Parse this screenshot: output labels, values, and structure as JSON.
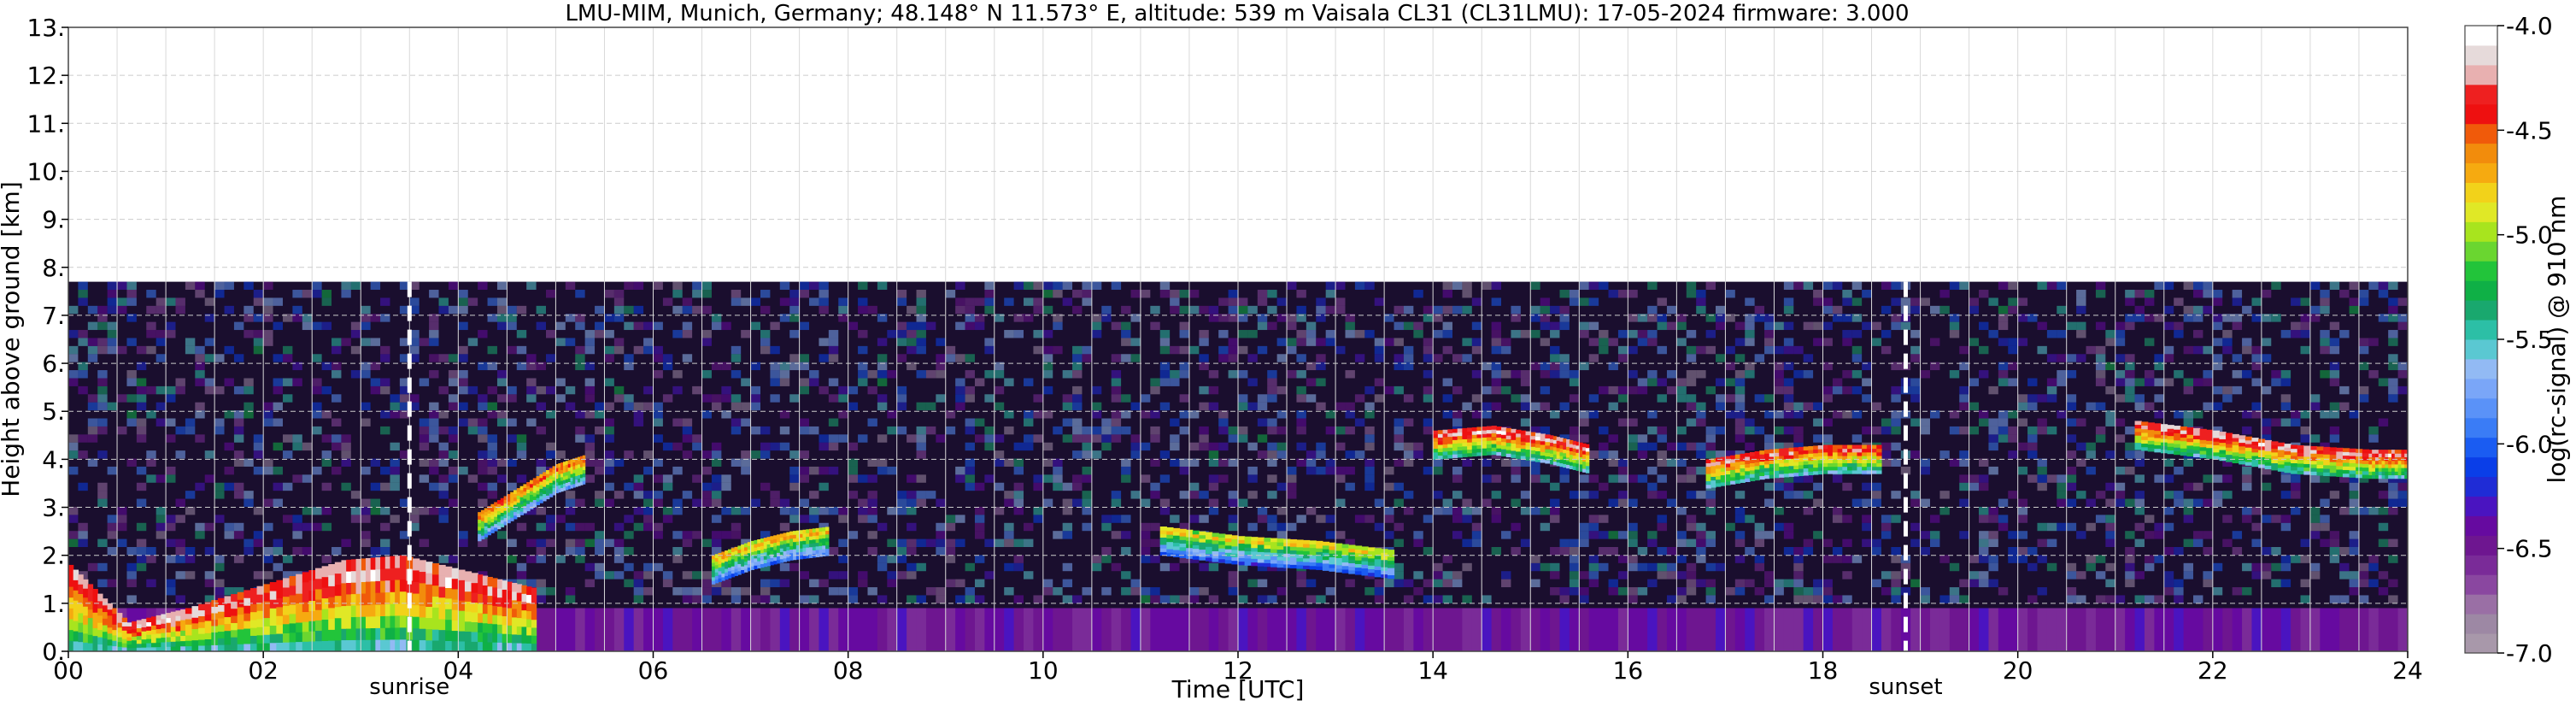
{
  "chart_data": {
    "type": "heatmap",
    "title": "LMU-MIM, Munich, Germany; 48.148° N 11.573° E, altitude: 539 m    Vaisala CL31 (CL31LMU): 17-05-2024    firmware: 3.000",
    "xlabel": "Time [UTC]",
    "ylabel": "Height above ground [km]",
    "xlim": [
      0,
      24
    ],
    "ylim": [
      0,
      13
    ],
    "x_ticks": [
      0,
      2,
      4,
      6,
      8,
      10,
      12,
      14,
      16,
      18,
      20,
      22,
      24
    ],
    "x_tick_labels": [
      "00",
      "02",
      "04",
      "06",
      "08",
      "10",
      "12",
      "14",
      "16",
      "18",
      "20",
      "22",
      "24"
    ],
    "y_ticks": [
      0,
      1,
      2,
      3,
      4,
      5,
      6,
      7,
      8,
      9,
      10,
      11,
      12,
      13
    ],
    "y_tick_labels": [
      "0.",
      "1.",
      "2.",
      "3.",
      "4.",
      "5.",
      "6.",
      "7.",
      "8.",
      "9.",
      "10.",
      "11.",
      "12.",
      "13."
    ],
    "grid": true,
    "measurement_top_km": 7.7,
    "colorbar": {
      "label": "log(rc-signal) @ 910 nm",
      "range": [
        -7.0,
        -4.0
      ],
      "ticks": [
        -4.0,
        -4.5,
        -5.0,
        -5.5,
        -6.0,
        -6.5,
        -7.0
      ],
      "tick_labels": [
        "-4.0",
        "-4.5",
        "-5.0",
        "-5.5",
        "-6.0",
        "-6.5",
        "-7.0"
      ],
      "colors": [
        "#a898aa",
        "#9d88a4",
        "#9a6fa5",
        "#8a47a0",
        "#7a2b98",
        "#6e1690",
        "#660aa0",
        "#4a14c0",
        "#1f2cd6",
        "#0a3ee8",
        "#1a5cf2",
        "#3a7cf6",
        "#5a92f8",
        "#7aa6f8",
        "#92baf4",
        "#5ac8d2",
        "#2cbfa6",
        "#19a86e",
        "#0fb046",
        "#22c43a",
        "#6ad630",
        "#a8e41e",
        "#e0e826",
        "#f2d21a",
        "#f6aa10",
        "#f28c0c",
        "#f05a0a",
        "#ee1010",
        "#ee2020",
        "#e8b0b0",
        "#e6dada",
        "#ffffff"
      ]
    },
    "annotations": [
      {
        "label": "sunrise",
        "x": 3.5
      },
      {
        "label": "sunset",
        "x": 18.85
      }
    ],
    "layers": [
      {
        "type": "boundary-layer",
        "x": [
          0,
          0.6,
          1.2,
          2.0,
          2.8,
          3.4,
          4.2,
          4.8
        ],
        "top": [
          1.8,
          0.6,
          0.9,
          1.4,
          1.9,
          2.0,
          1.6,
          1.3
        ],
        "peak": -4.0
      },
      {
        "type": "aerosol-layer",
        "x": [
          4.2,
          4.6,
          5.0,
          5.3
        ],
        "top": [
          2.9,
          3.4,
          3.9,
          4.1
        ],
        "peak": -4.3
      },
      {
        "type": "aerosol-layer",
        "x": [
          6.6,
          7.0,
          7.4,
          7.8
        ],
        "top": [
          2.0,
          2.3,
          2.5,
          2.6
        ],
        "peak": -4.5
      },
      {
        "type": "aerosol-layer",
        "x": [
          11.2,
          12.0,
          12.8,
          13.6
        ],
        "top": [
          2.6,
          2.4,
          2.3,
          2.1
        ],
        "peak": -4.6
      },
      {
        "type": "cloud-layer",
        "x": [
          14.0,
          14.6,
          15.2,
          15.6
        ],
        "top": [
          4.6,
          4.7,
          4.5,
          4.3
        ],
        "peak": -4.0
      },
      {
        "type": "cloud-layer",
        "x": [
          16.8,
          17.4,
          18.0,
          18.6
        ],
        "top": [
          4.0,
          4.2,
          4.3,
          4.3
        ],
        "peak": -4.1
      },
      {
        "type": "cloud-layer",
        "x": [
          21.2,
          22.0,
          22.8,
          23.6,
          24.0
        ],
        "top": [
          4.8,
          4.6,
          4.3,
          4.2,
          4.2
        ],
        "peak": -4.0
      }
    ]
  }
}
